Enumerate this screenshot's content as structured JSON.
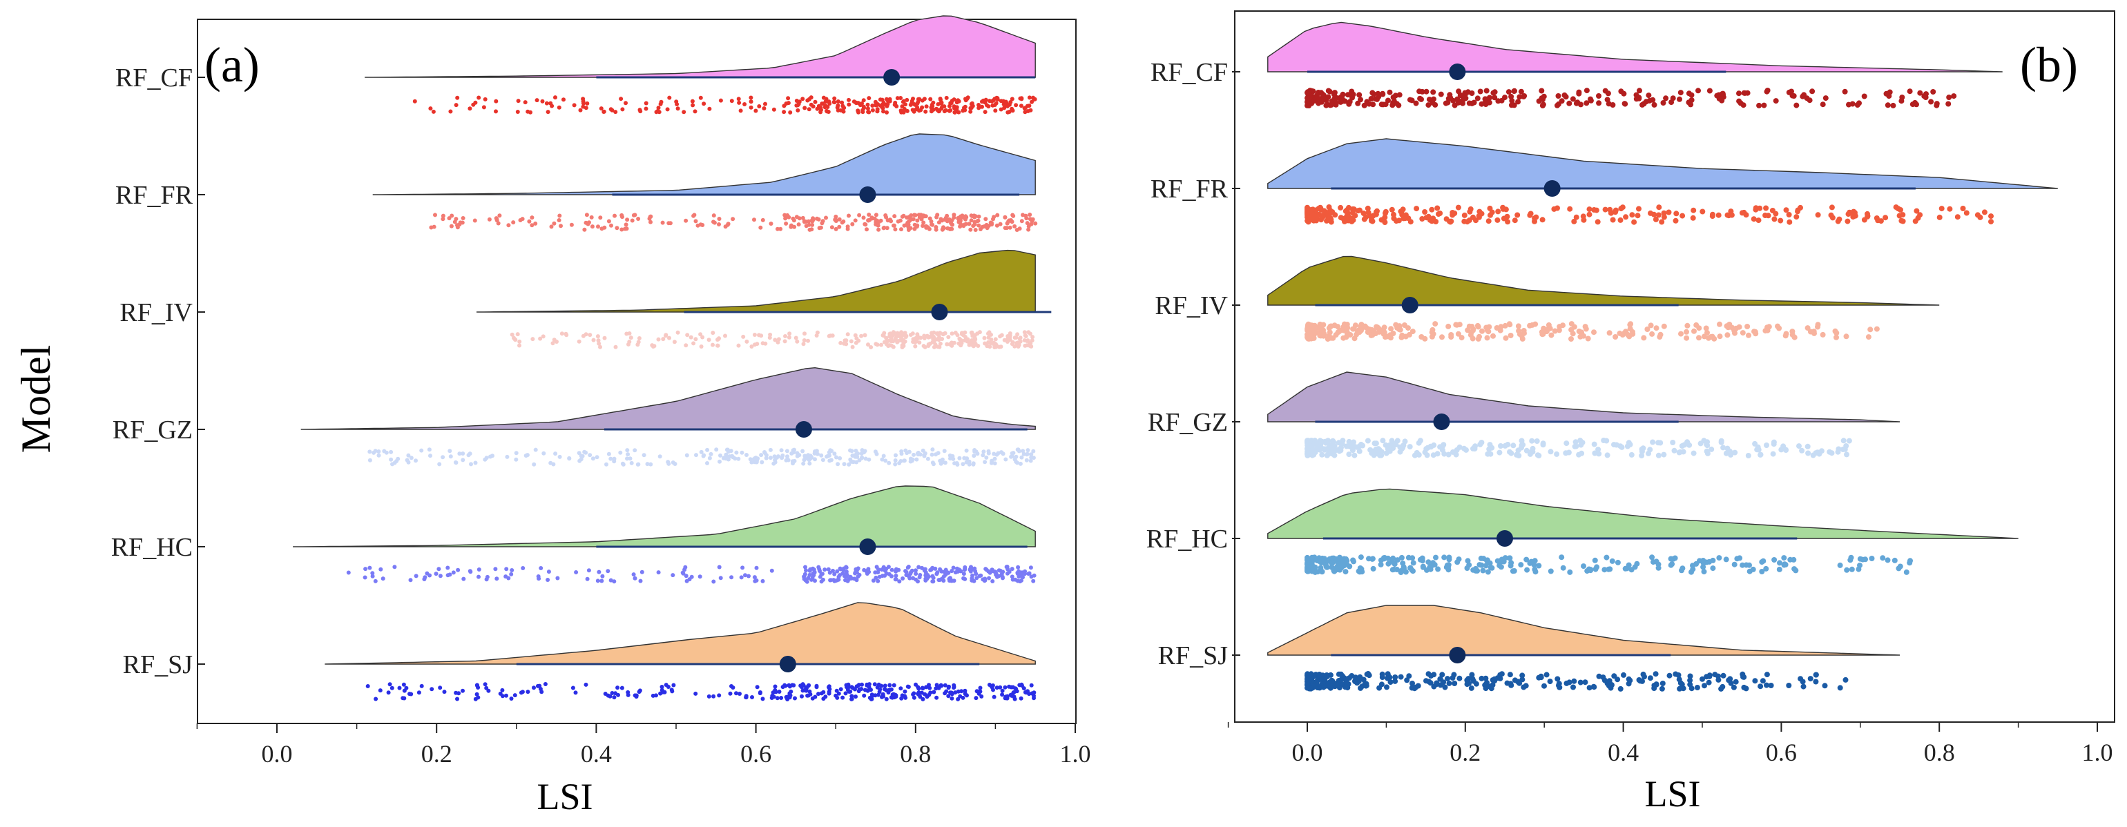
{
  "chart_data": [
    {
      "panel": "(a)",
      "type": "raincloud",
      "xlabel": "LSI",
      "ylabel": "Model",
      "xlim": [
        -0.1,
        1.0
      ],
      "xticks": [
        0.0,
        0.2,
        0.4,
        0.6,
        0.8,
        1.0
      ],
      "xtick_labels": [
        "0.0",
        "0.2",
        "0.4",
        "0.6",
        "0.8",
        "1.0"
      ],
      "series": [
        {
          "name": "RF_CF",
          "fill": "#f59af0",
          "point_color": "#e8322a",
          "mean": 0.77,
          "range": [
            0.4,
            0.95
          ],
          "density_x": [
            0.11,
            0.3,
            0.5,
            0.62,
            0.7,
            0.76,
            0.8,
            0.84,
            0.88,
            0.95
          ],
          "density_y": [
            0.0,
            0.02,
            0.06,
            0.15,
            0.35,
            0.7,
            0.92,
            1.0,
            0.88,
            0.55
          ],
          "extent": [
            0.11,
            0.95
          ],
          "points_min": 0.16,
          "points_dense_from": 0.64
        },
        {
          "name": "RF_FR",
          "fill": "#96b4f0",
          "point_color": "#f27a72",
          "mean": 0.74,
          "range": [
            0.42,
            0.93
          ],
          "density_x": [
            0.12,
            0.3,
            0.5,
            0.62,
            0.7,
            0.76,
            0.8,
            0.84,
            0.88,
            0.95
          ],
          "density_y": [
            0.0,
            0.02,
            0.07,
            0.2,
            0.45,
            0.8,
            0.98,
            0.96,
            0.8,
            0.55
          ],
          "extent": [
            0.12,
            0.95
          ],
          "points_min": 0.19,
          "points_dense_from": 0.64
        },
        {
          "name": "RF_IV",
          "fill": "#9f9418",
          "point_color": "#f7c9c4",
          "mean": 0.83,
          "range": [
            0.51,
            0.97
          ],
          "density_x": [
            0.25,
            0.45,
            0.6,
            0.7,
            0.78,
            0.84,
            0.88,
            0.92,
            0.95
          ],
          "density_y": [
            0.0,
            0.03,
            0.1,
            0.25,
            0.5,
            0.8,
            0.95,
            1.0,
            0.92
          ],
          "extent": [
            0.25,
            0.95
          ],
          "points_min": 0.29,
          "points_dense_from": 0.76
        },
        {
          "name": "RF_GZ",
          "fill": "#b7a5ce",
          "point_color": "#cbd9f6",
          "mean": 0.66,
          "range": [
            0.41,
            0.94
          ],
          "density_x": [
            0.03,
            0.2,
            0.35,
            0.5,
            0.6,
            0.67,
            0.72,
            0.78,
            0.85,
            0.92,
            0.95
          ],
          "density_y": [
            0.0,
            0.03,
            0.12,
            0.45,
            0.8,
            1.0,
            0.9,
            0.55,
            0.2,
            0.08,
            0.05
          ],
          "extent": [
            0.03,
            0.95
          ],
          "points_min": 0.1,
          "points_dense_from": 0.55
        },
        {
          "name": "RF_HC",
          "fill": "#a8da9c",
          "point_color": "#7a7bf6",
          "mean": 0.74,
          "range": [
            0.4,
            0.94
          ],
          "density_x": [
            0.02,
            0.2,
            0.4,
            0.55,
            0.65,
            0.72,
            0.78,
            0.82,
            0.88,
            0.95
          ],
          "density_y": [
            0.0,
            0.02,
            0.08,
            0.2,
            0.45,
            0.78,
            0.98,
            0.97,
            0.7,
            0.25
          ],
          "extent": [
            0.02,
            0.95
          ],
          "points_min": 0.08,
          "points_dense_from": 0.66
        },
        {
          "name": "RF_SJ",
          "fill": "#f7c190",
          "point_color": "#2a2ee6",
          "mean": 0.64,
          "range": [
            0.3,
            0.88
          ],
          "density_x": [
            0.06,
            0.25,
            0.4,
            0.52,
            0.6,
            0.68,
            0.73,
            0.78,
            0.85,
            0.95
          ],
          "density_y": [
            0.0,
            0.05,
            0.22,
            0.4,
            0.5,
            0.8,
            1.0,
            0.9,
            0.45,
            0.05
          ],
          "extent": [
            0.06,
            0.95
          ],
          "points_min": 0.11,
          "points_dense_from": 0.62
        }
      ]
    },
    {
      "panel": "(b)",
      "type": "raincloud",
      "xlabel": "LSI",
      "ylabel": "",
      "xlim": [
        -0.1,
        1.0
      ],
      "xticks": [
        0.0,
        0.2,
        0.4,
        0.6,
        0.8,
        1.0
      ],
      "xtick_labels": [
        "0.0",
        "0.2",
        "0.4",
        "0.6",
        "0.8",
        "1.0"
      ],
      "series": [
        {
          "name": "RF_CF",
          "fill": "#f59af0",
          "point_color": "#b21e1e",
          "mean": 0.19,
          "range": [
            0.0,
            0.53
          ],
          "density_x": [
            -0.05,
            0.0,
            0.04,
            0.08,
            0.15,
            0.25,
            0.4,
            0.6,
            0.8,
            0.88
          ],
          "density_y": [
            0.3,
            0.85,
            1.0,
            0.92,
            0.7,
            0.45,
            0.25,
            0.12,
            0.04,
            0.0
          ],
          "extent": [
            -0.05,
            0.88
          ],
          "points_max": 0.83
        },
        {
          "name": "RF_FR",
          "fill": "#96b4f0",
          "point_color": "#f05a3c",
          "mean": 0.31,
          "range": [
            0.03,
            0.77
          ],
          "density_x": [
            -0.05,
            0.0,
            0.05,
            0.1,
            0.2,
            0.35,
            0.5,
            0.65,
            0.8,
            0.95
          ],
          "density_y": [
            0.1,
            0.6,
            0.9,
            1.0,
            0.85,
            0.55,
            0.4,
            0.32,
            0.22,
            0.0
          ],
          "extent": [
            -0.05,
            0.95
          ],
          "points_max": 0.87
        },
        {
          "name": "RF_IV",
          "fill": "#9f9418",
          "point_color": "#f7b39e",
          "mean": 0.13,
          "range": [
            0.01,
            0.47
          ],
          "density_x": [
            -0.05,
            0.0,
            0.05,
            0.1,
            0.18,
            0.28,
            0.4,
            0.55,
            0.7,
            0.8
          ],
          "density_y": [
            0.2,
            0.75,
            1.0,
            0.85,
            0.55,
            0.3,
            0.18,
            0.1,
            0.05,
            0.0
          ],
          "extent": [
            -0.05,
            0.8
          ],
          "points_max": 0.73
        },
        {
          "name": "RF_GZ",
          "fill": "#b7a5ce",
          "point_color": "#c7dcf4",
          "mean": 0.17,
          "range": [
            0.01,
            0.47
          ],
          "density_x": [
            -0.05,
            0.0,
            0.05,
            0.1,
            0.18,
            0.28,
            0.4,
            0.55,
            0.7,
            0.75
          ],
          "density_y": [
            0.15,
            0.7,
            1.0,
            0.9,
            0.55,
            0.32,
            0.18,
            0.1,
            0.04,
            0.0
          ],
          "extent": [
            -0.05,
            0.75
          ],
          "points_max": 0.7
        },
        {
          "name": "RF_HC",
          "fill": "#a8da9c",
          "point_color": "#63a6d7",
          "mean": 0.25,
          "range": [
            0.02,
            0.62
          ],
          "density_x": [
            -0.05,
            0.0,
            0.05,
            0.1,
            0.2,
            0.3,
            0.45,
            0.6,
            0.75,
            0.9
          ],
          "density_y": [
            0.1,
            0.55,
            0.9,
            1.0,
            0.88,
            0.65,
            0.4,
            0.25,
            0.12,
            0.0
          ],
          "extent": [
            -0.05,
            0.9
          ],
          "points_max": 0.8
        },
        {
          "name": "RF_SJ",
          "fill": "#f7c190",
          "point_color": "#1a5aa5",
          "mean": 0.19,
          "range": [
            0.03,
            0.46
          ],
          "density_x": [
            -0.05,
            0.0,
            0.05,
            0.1,
            0.16,
            0.22,
            0.3,
            0.4,
            0.55,
            0.75
          ],
          "density_y": [
            0.05,
            0.45,
            0.85,
            1.0,
            1.0,
            0.85,
            0.55,
            0.3,
            0.1,
            0.0
          ],
          "extent": [
            -0.05,
            0.75
          ],
          "points_max": 0.69
        }
      ]
    }
  ]
}
